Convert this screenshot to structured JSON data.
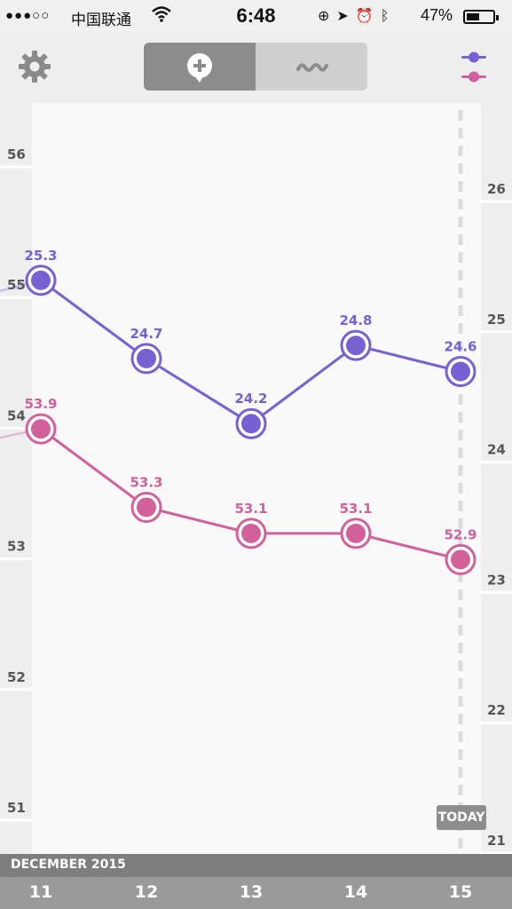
{
  "status_bar": {
    "signal_dots": "●●●○○",
    "carrier": "中国联通",
    "time": "6:48",
    "battery_percent": "47%",
    "battery_level": 0.47
  },
  "header": {
    "settings_icon": "gear-icon",
    "segment_add_icon": "add-bubble-icon",
    "segment_trend_icon": "wave-icon",
    "filter_icon": "two-sliders-icon",
    "active_segment": 0
  },
  "chart_data": {
    "type": "line",
    "title": "",
    "x": [
      "11",
      "12",
      "13",
      "14",
      "15"
    ],
    "x_month_label": "DECEMBER 2015",
    "left_axis": {
      "ticks": [
        56,
        55,
        54,
        53,
        52,
        51
      ],
      "range": [
        50.5,
        56.5
      ]
    },
    "right_axis": {
      "ticks": [
        26,
        25,
        24,
        23,
        22,
        21
      ],
      "range": [
        20.8,
        26.6
      ]
    },
    "series": [
      {
        "axis": "right",
        "color": "#7860d2",
        "values": [
          25.3,
          24.7,
          24.2,
          24.8,
          24.6
        ],
        "labels": [
          "25.3",
          "24.7",
          "24.2",
          "24.8",
          "24.6"
        ]
      },
      {
        "axis": "left",
        "color": "#d2609a",
        "values": [
          53.9,
          53.3,
          53.1,
          53.1,
          52.9
        ],
        "labels": [
          "53.9",
          "53.3",
          "53.1",
          "53.1",
          "52.9"
        ]
      }
    ],
    "today_label": "TODAY",
    "grid": true
  }
}
